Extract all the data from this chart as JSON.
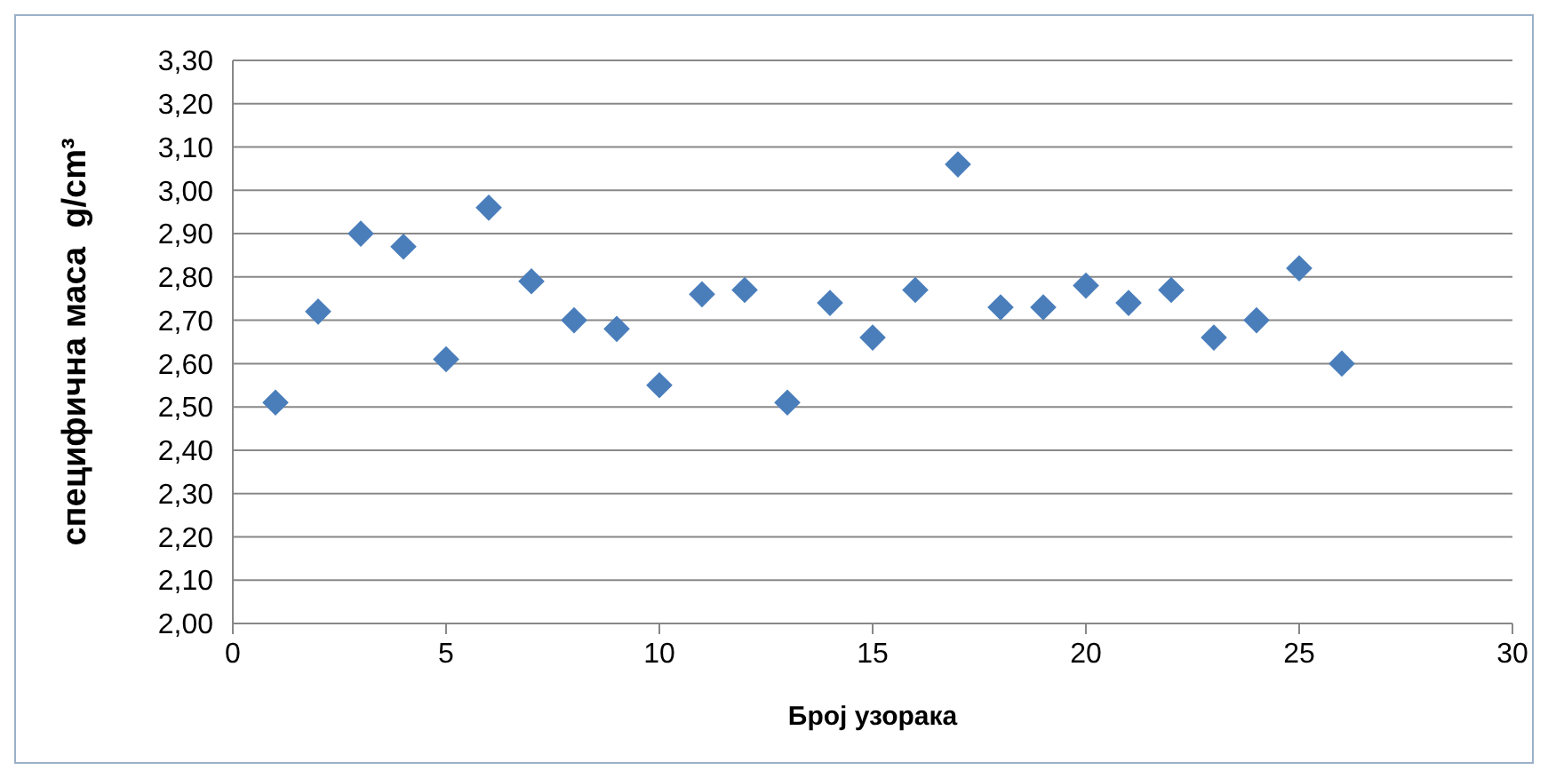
{
  "chart_data": {
    "type": "scatter",
    "xlabel": "Број узорака",
    "ylabel": "специфична маса  g/cm³",
    "x": [
      1,
      2,
      3,
      4,
      5,
      6,
      7,
      8,
      9,
      10,
      11,
      12,
      13,
      14,
      15,
      16,
      17,
      18,
      19,
      20,
      21,
      22,
      23,
      24,
      25,
      26
    ],
    "series": [
      {
        "color": "#4a7ebb",
        "values": [
          2.51,
          2.72,
          2.9,
          2.87,
          2.61,
          2.96,
          2.79,
          2.7,
          2.68,
          2.55,
          2.76,
          2.77,
          2.51,
          2.74,
          2.66,
          2.77,
          3.06,
          2.73,
          2.73,
          2.78,
          2.74,
          2.77,
          2.66,
          2.7,
          2.82,
          2.6
        ]
      }
    ],
    "xlim": [
      0,
      30
    ],
    "xticks": [
      0,
      5,
      10,
      15,
      20,
      25,
      30
    ],
    "ylim": [
      2,
      3.3
    ],
    "yticks": [
      {
        "value": 2,
        "label": "2,00"
      },
      {
        "value": 2.1,
        "label": "2,10"
      },
      {
        "value": 2.2,
        "label": "2,20"
      },
      {
        "value": 2.3,
        "label": "2,30"
      },
      {
        "value": 2.4,
        "label": "2,40"
      },
      {
        "value": 2.5,
        "label": "2,50"
      },
      {
        "value": 2.6,
        "label": "2,60"
      },
      {
        "value": 2.7,
        "label": "2,70"
      },
      {
        "value": 2.8,
        "label": "2,80"
      },
      {
        "value": 2.9,
        "label": "2,90"
      },
      {
        "value": 3.0,
        "label": "3,00"
      },
      {
        "value": 3.1,
        "label": "3,10"
      },
      {
        "value": 3.2,
        "label": "3,20"
      },
      {
        "value": 3.3,
        "label": "3,30"
      }
    ],
    "grid": "y",
    "marker": "diamond"
  }
}
